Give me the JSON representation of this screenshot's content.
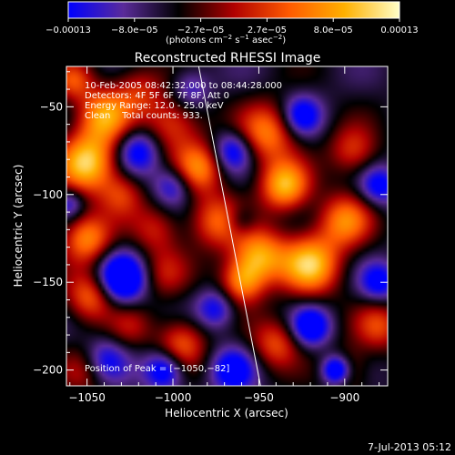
{
  "chart_data": {
    "type": "heatmap",
    "title": "Reconstructed RHESSI Image",
    "xlabel": "Heliocentric X (arcsec)",
    "ylabel": "Heliocentric Y (arcsec)",
    "xlim": [
      -1062,
      -875
    ],
    "ylim": [
      -209,
      -27
    ],
    "x_ticks": [
      -1050,
      -1000,
      -950,
      -900
    ],
    "x_tick_labels": [
      "−1050",
      "−1000",
      "−950",
      "−900"
    ],
    "y_ticks": [
      -50,
      -100,
      -150,
      -200
    ],
    "y_tick_labels": [
      "−50",
      "−100",
      "−150",
      "−200"
    ],
    "colorbar": {
      "range": [
        -0.00013,
        0.00013
      ],
      "tick_labels": [
        "−0.00013",
        "−8.0e−05",
        "−2.7e−05",
        "2.7e−05",
        "8.0e−05",
        "0.00013"
      ],
      "unit_main": "(photons cm",
      "unit_exp1": "−2",
      "unit_mid": " s",
      "unit_exp2": "−1",
      "unit_end": " asec",
      "unit_exp3": "−2",
      "unit_close": ")",
      "colormap": [
        "#0000ff",
        "#5a2b9a",
        "#000000",
        "#b00000",
        "#ff5a00",
        "#ffb000",
        "#ffffc8"
      ]
    },
    "annotations": [
      "10-Feb-2005 08:42:32.000 to 08:44:28.000",
      "Detectors: 4F 5F 6F 7F 8F, Att 0",
      "Energy Range: 12.0 - 25.0 keV",
      "Clean    Total counts: 933."
    ],
    "peak_label": "Position of Peak = [−1050,−82]",
    "peak": [
      -1050,
      -82
    ],
    "limb_line": [
      [
        -985,
        -27
      ],
      [
        -949,
        -209
      ]
    ],
    "blobs": [
      {
        "x": -1050,
        "y": -82,
        "v": 1.0,
        "s": 12
      },
      {
        "x": -1040,
        "y": -55,
        "v": 0.8,
        "s": 11
      },
      {
        "x": -1050,
        "y": -125,
        "v": 0.75,
        "s": 10
      },
      {
        "x": -1048,
        "y": -158,
        "v": 0.65,
        "s": 10
      },
      {
        "x": -1030,
        "y": -100,
        "v": 0.45,
        "s": 9
      },
      {
        "x": -1000,
        "y": -60,
        "v": 0.55,
        "s": 12
      },
      {
        "x": -985,
        "y": -85,
        "v": 0.7,
        "s": 10
      },
      {
        "x": -975,
        "y": -115,
        "v": 0.6,
        "s": 11
      },
      {
        "x": -1010,
        "y": -120,
        "v": 0.4,
        "s": 10
      },
      {
        "x": -1005,
        "y": -145,
        "v": 0.35,
        "s": 10
      },
      {
        "x": -945,
        "y": -65,
        "v": 0.7,
        "s": 12
      },
      {
        "x": -935,
        "y": -95,
        "v": 0.9,
        "s": 10
      },
      {
        "x": -920,
        "y": -140,
        "v": 0.95,
        "s": 12
      },
      {
        "x": -900,
        "y": -115,
        "v": 0.7,
        "s": 11
      },
      {
        "x": -895,
        "y": -75,
        "v": 0.5,
        "s": 10
      },
      {
        "x": -950,
        "y": -135,
        "v": 0.85,
        "s": 11
      },
      {
        "x": -960,
        "y": -150,
        "v": 0.7,
        "s": 9
      },
      {
        "x": -995,
        "y": -185,
        "v": 0.6,
        "s": 10
      },
      {
        "x": -940,
        "y": -185,
        "v": 0.55,
        "s": 10
      },
      {
        "x": -880,
        "y": -175,
        "v": 0.5,
        "s": 10
      },
      {
        "x": -900,
        "y": -200,
        "v": 0.45,
        "s": 9
      },
      {
        "x": -1050,
        "y": -200,
        "v": 0.4,
        "s": 10
      },
      {
        "x": -1025,
        "y": -175,
        "v": 0.3,
        "s": 9
      },
      {
        "x": -1020,
        "y": -40,
        "v": 0.4,
        "s": 10
      },
      {
        "x": -1058,
        "y": -35,
        "v": 0.5,
        "s": 8
      },
      {
        "x": -1030,
        "y": -148,
        "v": -0.9,
        "s": 10
      },
      {
        "x": -1020,
        "y": -75,
        "v": -0.6,
        "s": 9
      },
      {
        "x": -1000,
        "y": -95,
        "v": -0.5,
        "s": 8
      },
      {
        "x": -965,
        "y": -75,
        "v": -0.6,
        "s": 8
      },
      {
        "x": -925,
        "y": -55,
        "v": -0.6,
        "s": 8
      },
      {
        "x": -880,
        "y": -95,
        "v": -0.55,
        "s": 8
      },
      {
        "x": -1040,
        "y": -195,
        "v": -0.55,
        "s": 9
      },
      {
        "x": -1005,
        "y": -200,
        "v": -0.7,
        "s": 8
      },
      {
        "x": -965,
        "y": -200,
        "v": -0.6,
        "s": 9
      },
      {
        "x": -920,
        "y": -175,
        "v": -0.7,
        "s": 8
      },
      {
        "x": -905,
        "y": -200,
        "v": -1.0,
        "s": 6
      },
      {
        "x": -880,
        "y": -150,
        "v": -0.55,
        "s": 8
      },
      {
        "x": -975,
        "y": -165,
        "v": -0.5,
        "s": 8
      },
      {
        "x": -1060,
        "y": -105,
        "v": -0.4,
        "s": 6
      },
      {
        "x": -990,
        "y": -40,
        "v": -0.4,
        "s": 8
      },
      {
        "x": -960,
        "y": -115,
        "v": -0.3,
        "s": 6
      }
    ]
  },
  "footer": {
    "timestamp": "7-Jul-2013 05:12"
  }
}
